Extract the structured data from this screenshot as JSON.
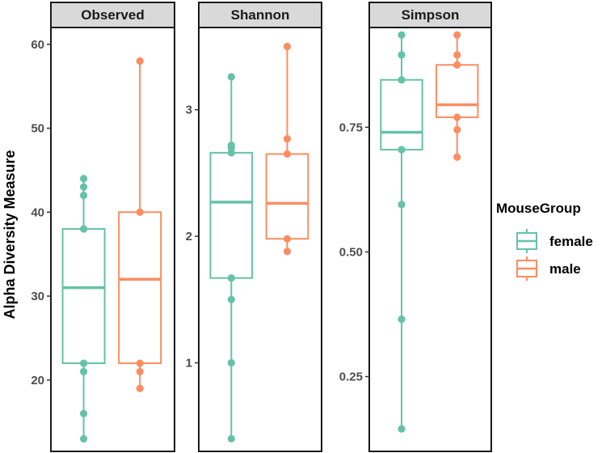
{
  "chart_data": {
    "type": "boxplot",
    "ylabel": "Alpha Diversity Measure",
    "legend": {
      "title": "MouseGroup",
      "position": "right",
      "entries": [
        {
          "name": "female",
          "color": "#66c2a5"
        },
        {
          "name": "male",
          "color": "#fc8d62"
        }
      ]
    },
    "panels": [
      {
        "title": "Observed",
        "ylim": [
          11.5,
          62
        ],
        "ticks": [
          20,
          30,
          40,
          50,
          60
        ],
        "tick_labels": [
          "20",
          "30",
          "40",
          "50",
          "60"
        ],
        "groups": [
          {
            "name": "female",
            "q1": 22,
            "median": 31,
            "q3": 38,
            "whisker_low": 13,
            "whisker_high": 44,
            "points": [
              13,
              16,
              21,
              22,
              38,
              42,
              43,
              44
            ]
          },
          {
            "name": "male",
            "q1": 22,
            "median": 32,
            "q3": 40,
            "whisker_low": 19,
            "whisker_high": 58,
            "points": [
              19,
              21,
              22,
              40,
              58
            ]
          }
        ]
      },
      {
        "title": "Shannon",
        "ylim": [
          0.3,
          3.65
        ],
        "ticks": [
          1,
          2,
          3
        ],
        "tick_labels": [
          "1",
          "2",
          "3"
        ],
        "groups": [
          {
            "name": "female",
            "q1": 1.67,
            "median": 2.27,
            "q3": 2.66,
            "whisker_low": 0.4,
            "whisker_high": 3.26,
            "points": [
              0.4,
              1.0,
              1.5,
              1.67,
              2.66,
              2.7,
              2.72,
              3.26
            ]
          },
          {
            "name": "male",
            "q1": 1.98,
            "median": 2.26,
            "q3": 2.65,
            "whisker_low": 1.88,
            "whisker_high": 3.5,
            "points": [
              1.88,
              1.98,
              2.65,
              2.77,
              3.5
            ]
          }
        ]
      },
      {
        "title": "Simpson",
        "ylim": [
          0.1,
          0.95
        ],
        "ticks": [
          0.25,
          0.5,
          0.75
        ],
        "tick_labels": [
          "0.25",
          "0.50",
          "0.75"
        ],
        "groups": [
          {
            "name": "female",
            "q1": 0.705,
            "median": 0.74,
            "q3": 0.845,
            "whisker_low": 0.145,
            "whisker_high": 0.935,
            "points": [
              0.145,
              0.365,
              0.595,
              0.705,
              0.845,
              0.895,
              0.935
            ]
          },
          {
            "name": "male",
            "q1": 0.77,
            "median": 0.795,
            "q3": 0.875,
            "whisker_low": 0.69,
            "whisker_high": 0.935,
            "points": [
              0.69,
              0.745,
              0.77,
              0.875,
              0.895,
              0.935
            ]
          }
        ]
      }
    ]
  }
}
